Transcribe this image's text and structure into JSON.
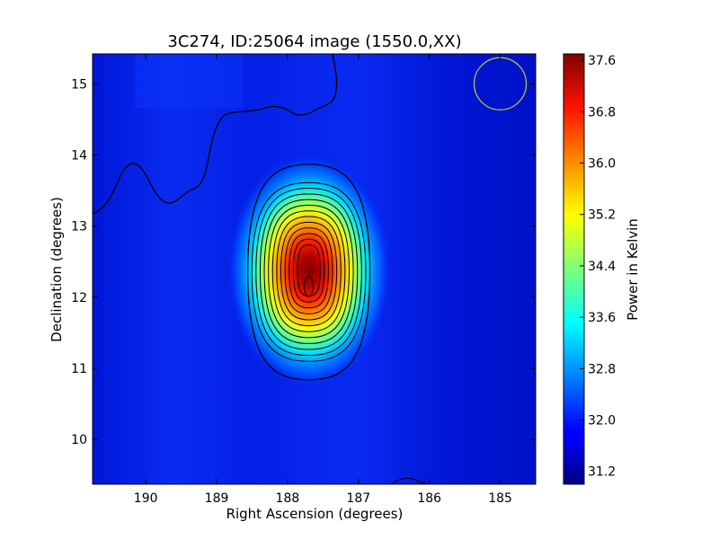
{
  "chart_data": {
    "type": "heatmap",
    "title": "3C274, ID:25064 image (1550.0,XX)",
    "xlabel": "Right Ascension (degrees)",
    "ylabel": "Declination (degrees)",
    "x_reversed": true,
    "xlim": [
      190.75,
      184.5
    ],
    "ylim": [
      9.37,
      15.42
    ],
    "x_ticks": [
      190,
      189,
      188,
      187,
      186,
      185
    ],
    "x_tick_labels": [
      "190",
      "189",
      "188",
      "187",
      "186",
      "185"
    ],
    "y_ticks": [
      10,
      11,
      12,
      13,
      14,
      15
    ],
    "y_tick_labels": [
      "10",
      "11",
      "12",
      "13",
      "14",
      "15"
    ],
    "colormap": "jet",
    "colorbar": {
      "label": "Power in Kelvin",
      "vmin": 31.0,
      "vmax": 37.7,
      "ticks": [
        31.2,
        32.0,
        32.8,
        33.6,
        34.4,
        35.2,
        36.0,
        36.8,
        37.6
      ],
      "tick_labels": [
        "31.2",
        "32.0",
        "32.8",
        "33.6",
        "34.4",
        "35.2",
        "36.0",
        "36.8",
        "37.6"
      ]
    },
    "background_level": 31.6,
    "source": {
      "ra": 187.7,
      "dec": 12.15,
      "peak": 37.65,
      "elongation": "north-south"
    },
    "beam_circle": {
      "ra": 185.0,
      "dec": 15.0,
      "color": "#c8c832"
    },
    "contour_color": "#000000"
  }
}
